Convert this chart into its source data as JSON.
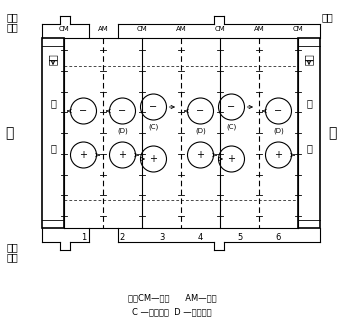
{
  "bg_color": "#ffffff",
  "figsize": [
    3.45,
    3.27
  ],
  "dpi": 100,
  "membrane_types": [
    "CM",
    "AM",
    "CM",
    "AM",
    "CM",
    "AM",
    "CM"
  ],
  "note_line1": "注：CM—阳膜      AM—阴膜",
  "note_line2": "C —浓水隔板  D —淡水隔板"
}
